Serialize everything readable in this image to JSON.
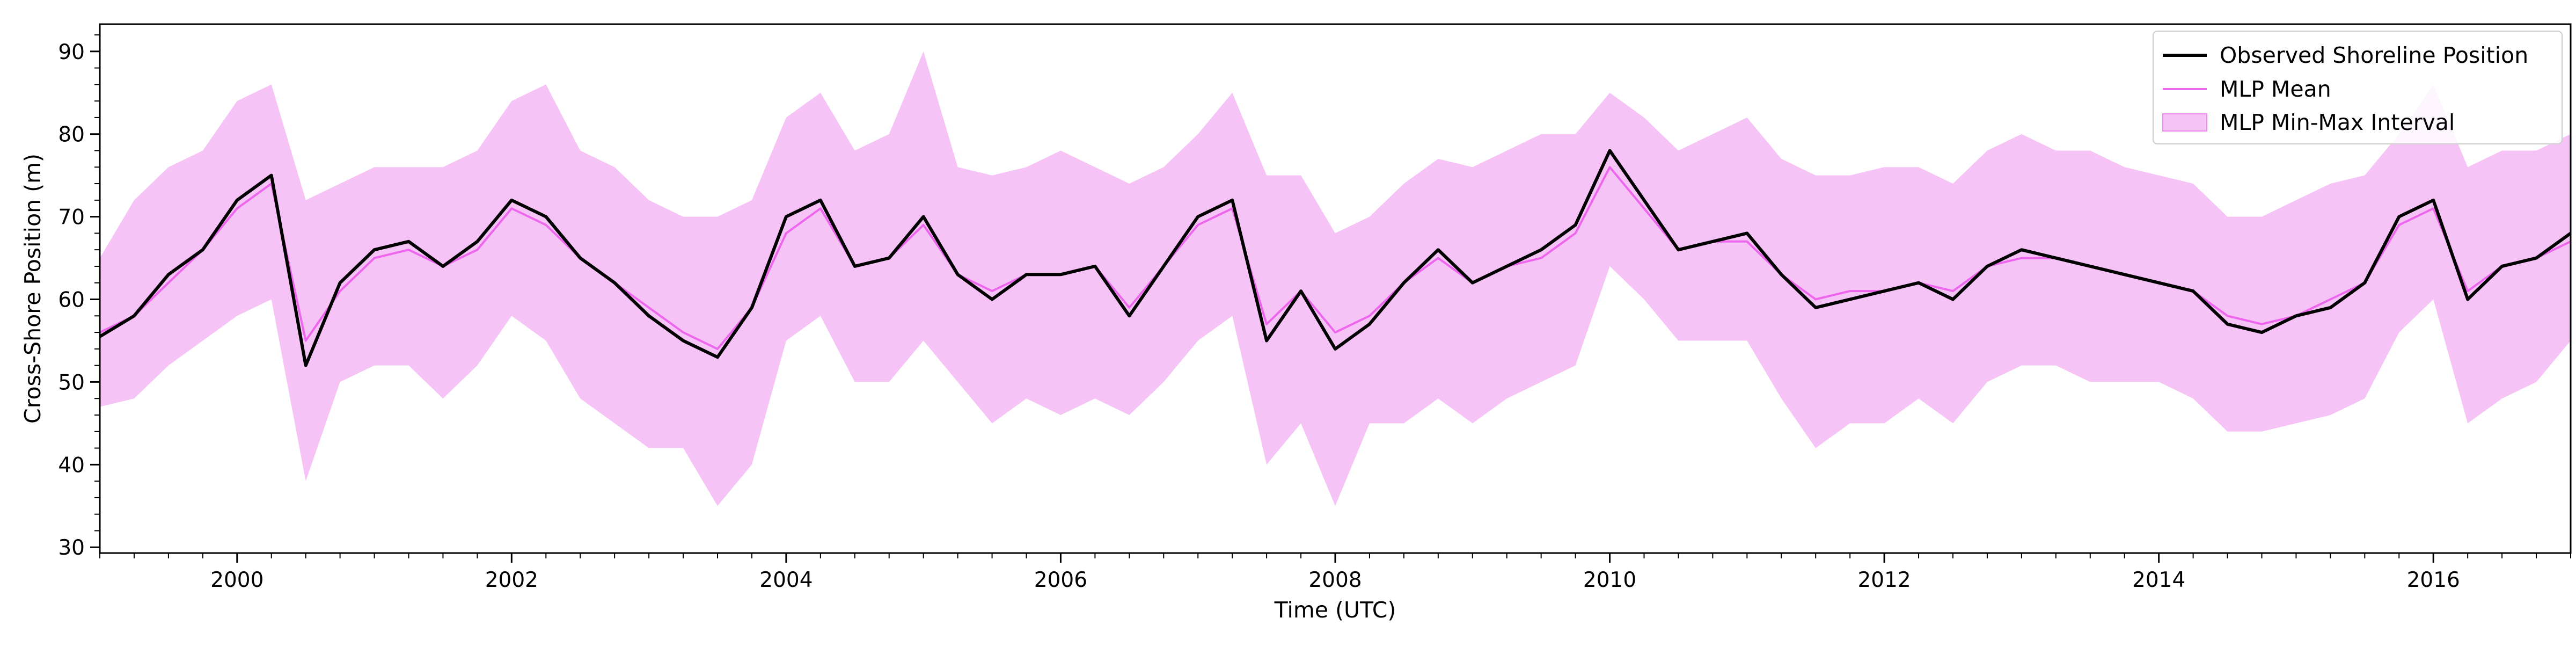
{
  "chart_data": {
    "type": "line",
    "title": "",
    "xlabel": "Time (UTC)",
    "ylabel": "Cross-Shore Position (m)",
    "x_tick_labels": [
      "2000",
      "2002",
      "2004",
      "2006",
      "2008",
      "2010",
      "2012",
      "2014",
      "2016"
    ],
    "y_tick_labels": [
      "30",
      "40",
      "50",
      "60",
      "70",
      "80",
      "90"
    ],
    "xlim": [
      1999.0,
      2017.0
    ],
    "ylim": [
      29.3,
      93.3
    ],
    "grid": false,
    "legend_position": "top-right",
    "colors": {
      "observed": "#000000",
      "mean": "#ee66ee",
      "band_fill": "#ee88ee",
      "band_opacity": 0.5
    },
    "series": [
      {
        "name": "Observed Shoreline Position",
        "kind": "line",
        "x": [
          1999.0,
          1999.25,
          1999.5,
          1999.75,
          2000.0,
          2000.25,
          2000.5,
          2000.75,
          2001.0,
          2001.25,
          2001.5,
          2001.75,
          2002.0,
          2002.25,
          2002.5,
          2002.75,
          2003.0,
          2003.25,
          2003.5,
          2003.75,
          2004.0,
          2004.25,
          2004.5,
          2004.75,
          2005.0,
          2005.25,
          2005.5,
          2005.75,
          2006.0,
          2006.25,
          2006.5,
          2006.75,
          2007.0,
          2007.25,
          2007.5,
          2007.75,
          2008.0,
          2008.25,
          2008.5,
          2008.75,
          2009.0,
          2009.25,
          2009.5,
          2009.75,
          2010.0,
          2010.25,
          2010.5,
          2010.75,
          2011.0,
          2011.25,
          2011.5,
          2011.75,
          2012.0,
          2012.25,
          2012.5,
          2012.75,
          2013.0,
          2013.25,
          2013.5,
          2013.75,
          2014.0,
          2014.25,
          2014.5,
          2014.75,
          2015.0,
          2015.25,
          2015.5,
          2015.75,
          2016.0,
          2016.25,
          2016.5,
          2016.75,
          2017.0
        ],
        "values": [
          55.5,
          58,
          63,
          66,
          72,
          75,
          52,
          62,
          66,
          67,
          64,
          67,
          72,
          70,
          65,
          62,
          58,
          55,
          53,
          59,
          70,
          72,
          64,
          65,
          70,
          63,
          60,
          63,
          63,
          64,
          58,
          64,
          70,
          72,
          55,
          61,
          54,
          57,
          62,
          66,
          62,
          64,
          66,
          69,
          78,
          72,
          66,
          67,
          68,
          63,
          59,
          60,
          61,
          62,
          60,
          64,
          66,
          65,
          64,
          63,
          62,
          61,
          57,
          56,
          58,
          59,
          62,
          70,
          72,
          60,
          64,
          65,
          68
        ]
      },
      {
        "name": "MLP Mean",
        "kind": "line",
        "x": [
          1999.0,
          1999.25,
          1999.5,
          1999.75,
          2000.0,
          2000.25,
          2000.5,
          2000.75,
          2001.0,
          2001.25,
          2001.5,
          2001.75,
          2002.0,
          2002.25,
          2002.5,
          2002.75,
          2003.0,
          2003.25,
          2003.5,
          2003.75,
          2004.0,
          2004.25,
          2004.5,
          2004.75,
          2005.0,
          2005.25,
          2005.5,
          2005.75,
          2006.0,
          2006.25,
          2006.5,
          2006.75,
          2007.0,
          2007.25,
          2007.5,
          2007.75,
          2008.0,
          2008.25,
          2008.5,
          2008.75,
          2009.0,
          2009.25,
          2009.5,
          2009.75,
          2010.0,
          2010.25,
          2010.5,
          2010.75,
          2011.0,
          2011.25,
          2011.5,
          2011.75,
          2012.0,
          2012.25,
          2012.5,
          2012.75,
          2013.0,
          2013.25,
          2013.5,
          2013.75,
          2014.0,
          2014.25,
          2014.5,
          2014.75,
          2015.0,
          2015.25,
          2015.5,
          2015.75,
          2016.0,
          2016.25,
          2016.5,
          2016.75,
          2017.0
        ],
        "values": [
          56,
          58,
          62,
          66,
          71,
          74,
          55,
          61,
          65,
          66,
          64,
          66,
          71,
          69,
          65,
          62,
          59,
          56,
          54,
          59,
          68,
          71,
          64,
          65,
          69,
          63,
          61,
          63,
          63,
          64,
          59,
          64,
          69,
          71,
          57,
          61,
          56,
          58,
          62,
          65,
          62,
          64,
          65,
          68,
          76,
          71,
          66,
          67,
          67,
          63,
          60,
          61,
          61,
          62,
          61,
          64,
          65,
          65,
          64,
          63,
          62,
          61,
          58,
          57,
          58,
          60,
          62,
          69,
          71,
          61,
          64,
          65,
          67
        ]
      },
      {
        "name": "MLP Min-Max Interval",
        "kind": "band",
        "x": [
          1999.0,
          1999.25,
          1999.5,
          1999.75,
          2000.0,
          2000.25,
          2000.5,
          2000.75,
          2001.0,
          2001.25,
          2001.5,
          2001.75,
          2002.0,
          2002.25,
          2002.5,
          2002.75,
          2003.0,
          2003.25,
          2003.5,
          2003.75,
          2004.0,
          2004.25,
          2004.5,
          2004.75,
          2005.0,
          2005.25,
          2005.5,
          2005.75,
          2006.0,
          2006.25,
          2006.5,
          2006.75,
          2007.0,
          2007.25,
          2007.5,
          2007.75,
          2008.0,
          2008.25,
          2008.5,
          2008.75,
          2009.0,
          2009.25,
          2009.5,
          2009.75,
          2010.0,
          2010.25,
          2010.5,
          2010.75,
          2011.0,
          2011.25,
          2011.5,
          2011.75,
          2012.0,
          2012.25,
          2012.5,
          2012.75,
          2013.0,
          2013.25,
          2013.5,
          2013.75,
          2014.0,
          2014.25,
          2014.5,
          2014.75,
          2015.0,
          2015.25,
          2015.5,
          2015.75,
          2016.0,
          2016.25,
          2016.5,
          2016.75,
          2017.0
        ],
        "lower": [
          47,
          48,
          52,
          55,
          58,
          60,
          38,
          50,
          52,
          52,
          48,
          52,
          58,
          55,
          48,
          45,
          42,
          42,
          35,
          40,
          55,
          58,
          50,
          50,
          55,
          50,
          45,
          48,
          46,
          48,
          46,
          50,
          55,
          58,
          40,
          45,
          35,
          45,
          45,
          48,
          45,
          48,
          50,
          52,
          64,
          60,
          55,
          55,
          55,
          48,
          42,
          45,
          45,
          48,
          45,
          50,
          52,
          52,
          50,
          50,
          50,
          48,
          44,
          44,
          45,
          46,
          48,
          56,
          60,
          45,
          48,
          50,
          55
        ],
        "upper": [
          65,
          72,
          76,
          78,
          84,
          86,
          72,
          74,
          76,
          76,
          76,
          78,
          84,
          86,
          78,
          76,
          72,
          70,
          70,
          72,
          82,
          85,
          78,
          80,
          90,
          76,
          75,
          76,
          78,
          76,
          74,
          76,
          80,
          85,
          75,
          75,
          68,
          70,
          74,
          77,
          76,
          78,
          80,
          80,
          85,
          82,
          78,
          80,
          82,
          77,
          75,
          75,
          76,
          76,
          74,
          78,
          80,
          78,
          78,
          76,
          75,
          74,
          70,
          70,
          72,
          74,
          75,
          80,
          86,
          76,
          78,
          78,
          80
        ]
      }
    ]
  }
}
